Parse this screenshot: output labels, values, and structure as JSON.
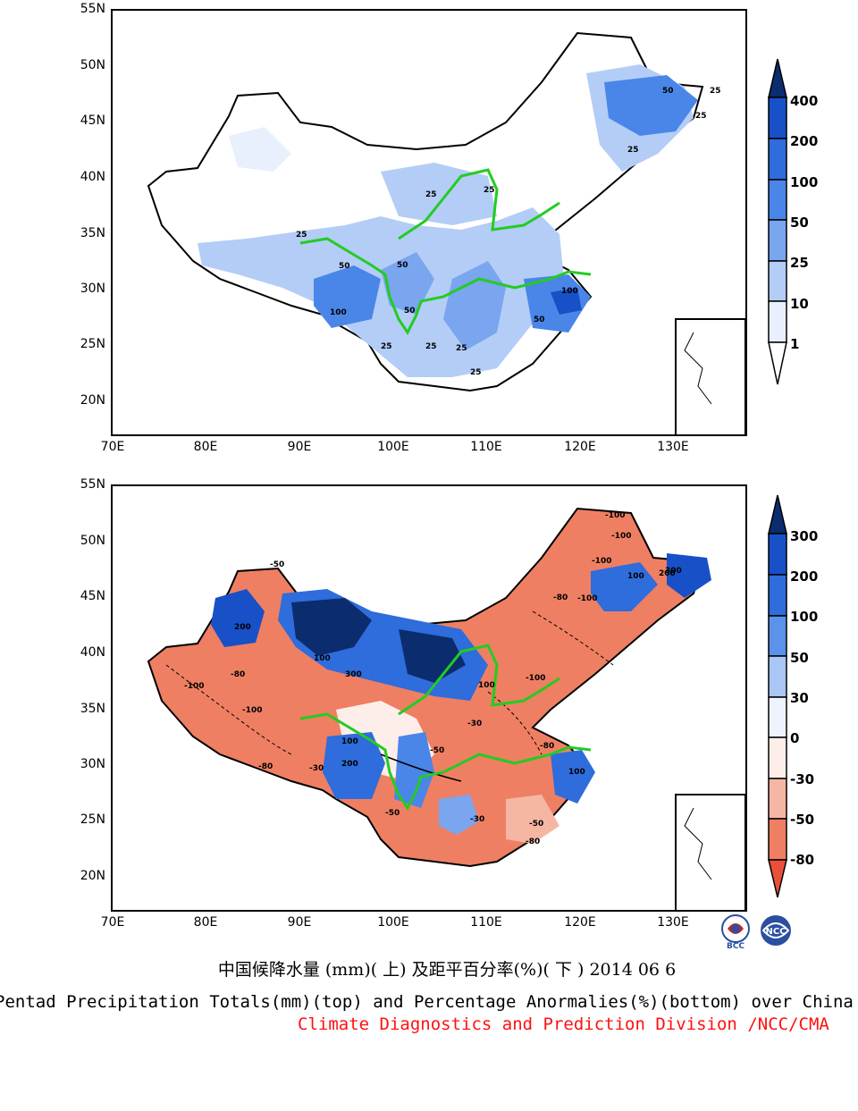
{
  "panels": {
    "top": {
      "lat_labels": [
        "55N",
        "50N",
        "45N",
        "40N",
        "35N",
        "30N",
        "25N",
        "20N"
      ],
      "lon_labels": [
        "70E",
        "80E",
        "90E",
        "100E",
        "110E",
        "120E",
        "130E"
      ],
      "colorbar": {
        "labels": [
          "400",
          "200",
          "100",
          "50",
          "25",
          "10",
          "1"
        ],
        "colors": [
          "#0b2d6e",
          "#1850c8",
          "#2f6cdc",
          "#4a86e8",
          "#7aa5ef",
          "#b3cdf6",
          "#e8f0fd",
          "#ffffff"
        ]
      },
      "contour_labels": [
        "50",
        "25",
        "25",
        "25",
        "25",
        "25",
        "25",
        "50",
        "50",
        "50",
        "100",
        "50",
        "25",
        "25",
        "25",
        "25",
        "100"
      ]
    },
    "bottom": {
      "lat_labels": [
        "55N",
        "50N",
        "45N",
        "40N",
        "35N",
        "30N",
        "25N",
        "20N"
      ],
      "lon_labels": [
        "70E",
        "80E",
        "90E",
        "100E",
        "110E",
        "120E",
        "130E"
      ],
      "colorbar": {
        "labels": [
          "300",
          "200",
          "100",
          "50",
          "30",
          "0",
          "-30",
          "-50",
          "-80"
        ],
        "colors": [
          "#0b2d6e",
          "#1850c8",
          "#2f6cdc",
          "#5b92ea",
          "#a9c6f5",
          "#eef3fd",
          "#fdeeea",
          "#f6b6a4",
          "#ef7f63",
          "#e9503a"
        ]
      },
      "contour_labels": [
        "-100",
        "-100",
        "-50",
        "100",
        "300",
        "200",
        "-100",
        "-80",
        "-100",
        "-80",
        "-30",
        "200",
        "100",
        "300",
        "100",
        "-80",
        "-100",
        "-50",
        "-30",
        "-100",
        "-80",
        "100",
        "-50",
        "-30",
        "-50",
        "-80",
        "-100",
        "200",
        "100"
      ]
    }
  },
  "footer": {
    "title_cn": "中国候降水量 (mm)( 上) 及距平百分率(%)( 下 ) 2014 06 6",
    "title_en": "Pentad Precipitation Totals(mm)(top) and Percentage Anormalies(%)(bottom) over China",
    "division": "Climate Diagnostics and Prediction Division /NCC/CMA",
    "logo_left_text": "BCC",
    "logo_right_text": "NCC"
  }
}
